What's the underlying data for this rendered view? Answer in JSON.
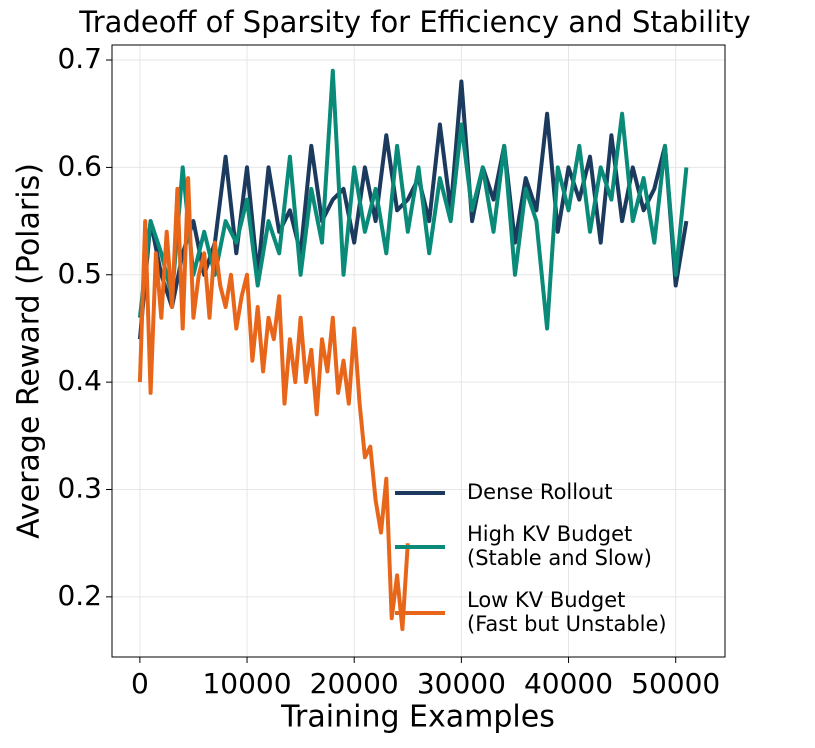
{
  "chart_data": {
    "type": "line",
    "title": "Tradeoff of Sparsity for Efficiency and Stability",
    "xlabel": "Training Examples",
    "ylabel": "Average Reward (Polaris)",
    "xlim": [
      -2600,
      54600
    ],
    "ylim": [
      0.144,
      0.714
    ],
    "xticks": [
      0,
      10000,
      20000,
      30000,
      40000,
      50000
    ],
    "yticks": [
      0.2,
      0.3,
      0.4,
      0.5,
      0.6,
      0.7
    ],
    "grid": true,
    "legend": "lower right",
    "series": [
      {
        "name": "Dense Rollout",
        "color": "#1b3a5e",
        "x": [
          0,
          1000,
          2000,
          3000,
          4000,
          5000,
          6000,
          7000,
          8000,
          9000,
          10000,
          11000,
          12000,
          13000,
          14000,
          15000,
          16000,
          17000,
          18000,
          19000,
          20000,
          21000,
          22000,
          23000,
          24000,
          25000,
          26000,
          27000,
          28000,
          29000,
          30000,
          31000,
          32000,
          33000,
          34000,
          35000,
          36000,
          37000,
          38000,
          39000,
          40000,
          41000,
          42000,
          43000,
          44000,
          45000,
          46000,
          47000,
          48000,
          49000,
          50000,
          51000
        ],
        "values": [
          0.44,
          0.55,
          0.5,
          0.47,
          0.52,
          0.55,
          0.5,
          0.53,
          0.61,
          0.52,
          0.6,
          0.5,
          0.6,
          0.54,
          0.56,
          0.52,
          0.62,
          0.55,
          0.57,
          0.58,
          0.53,
          0.6,
          0.55,
          0.63,
          0.56,
          0.57,
          0.59,
          0.55,
          0.64,
          0.56,
          0.68,
          0.55,
          0.6,
          0.57,
          0.62,
          0.53,
          0.59,
          0.56,
          0.65,
          0.54,
          0.6,
          0.57,
          0.61,
          0.53,
          0.63,
          0.55,
          0.6,
          0.56,
          0.58,
          0.62,
          0.49,
          0.55
        ]
      },
      {
        "name": "High KV Budget\n(Stable and Slow)",
        "color": "#0a8a78",
        "x": [
          0,
          1000,
          2000,
          3000,
          4000,
          5000,
          6000,
          7000,
          8000,
          9000,
          10000,
          11000,
          12000,
          13000,
          14000,
          15000,
          16000,
          17000,
          18000,
          19000,
          20000,
          21000,
          22000,
          23000,
          24000,
          25000,
          26000,
          27000,
          28000,
          29000,
          30000,
          31000,
          32000,
          33000,
          34000,
          35000,
          36000,
          37000,
          38000,
          39000,
          40000,
          41000,
          42000,
          43000,
          44000,
          45000,
          46000,
          47000,
          48000,
          49000,
          50000,
          51000
        ],
        "values": [
          0.46,
          0.55,
          0.52,
          0.48,
          0.6,
          0.5,
          0.54,
          0.5,
          0.55,
          0.53,
          0.57,
          0.49,
          0.55,
          0.52,
          0.61,
          0.5,
          0.58,
          0.53,
          0.69,
          0.5,
          0.6,
          0.54,
          0.58,
          0.52,
          0.62,
          0.54,
          0.6,
          0.52,
          0.59,
          0.55,
          0.64,
          0.56,
          0.6,
          0.54,
          0.62,
          0.5,
          0.58,
          0.55,
          0.45,
          0.6,
          0.56,
          0.62,
          0.54,
          0.6,
          0.57,
          0.65,
          0.55,
          0.59,
          0.53,
          0.62,
          0.5,
          0.6
        ]
      },
      {
        "name": "Low KV Budget\n(Fast but Unstable)",
        "color": "#e8661a",
        "x": [
          0,
          500,
          1000,
          1500,
          2000,
          2500,
          3000,
          3500,
          4000,
          4500,
          5000,
          5500,
          6000,
          6500,
          7000,
          7500,
          8000,
          8500,
          9000,
          9500,
          10000,
          10500,
          11000,
          11500,
          12000,
          12500,
          13000,
          13500,
          14000,
          14500,
          15000,
          15500,
          16000,
          16500,
          17000,
          17500,
          18000,
          18500,
          19000,
          19500,
          20000,
          20500,
          21000,
          21500,
          22000,
          22500,
          23000,
          23500,
          24000,
          24500,
          25000
        ],
        "values": [
          0.4,
          0.55,
          0.39,
          0.52,
          0.46,
          0.54,
          0.47,
          0.58,
          0.45,
          0.59,
          0.46,
          0.5,
          0.52,
          0.46,
          0.53,
          0.49,
          0.47,
          0.5,
          0.45,
          0.48,
          0.5,
          0.42,
          0.47,
          0.41,
          0.46,
          0.44,
          0.48,
          0.38,
          0.44,
          0.4,
          0.46,
          0.4,
          0.43,
          0.37,
          0.44,
          0.41,
          0.46,
          0.39,
          0.42,
          0.38,
          0.45,
          0.38,
          0.33,
          0.34,
          0.29,
          0.26,
          0.31,
          0.18,
          0.22,
          0.17,
          0.25
        ]
      }
    ]
  }
}
